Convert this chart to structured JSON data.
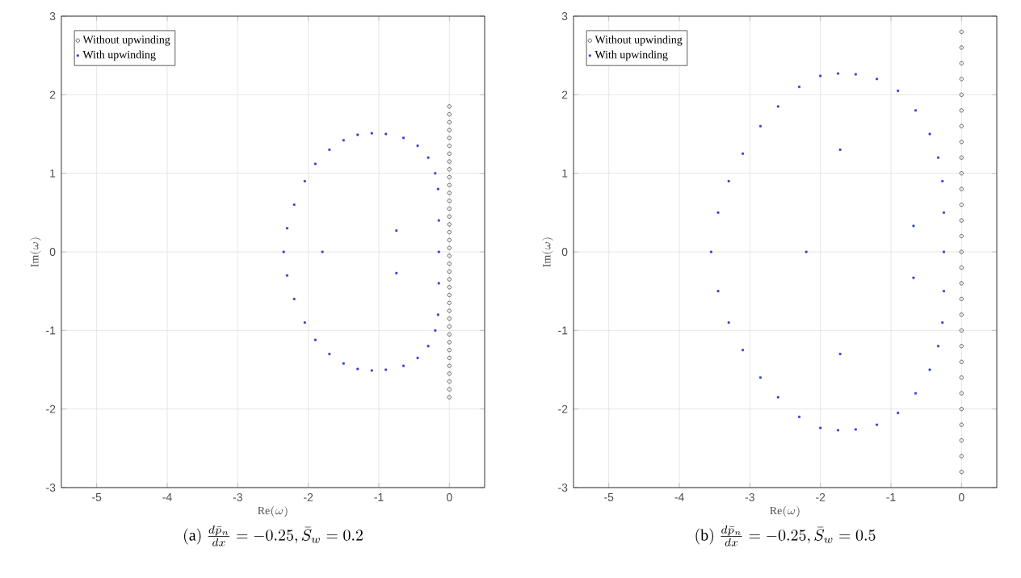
{
  "chart_data": [
    {
      "type": "scatter",
      "title": "\\mathrm{(a)}\\ \\frac{d\\bar{p}_n}{dx} = -0.25, \\bar{S}_w = 0.2",
      "xlabel": "\\mathrm{Re}(\\omega)",
      "ylabel": "\\mathrm{Im}(\\omega)",
      "xlim": [
        -5.5,
        0.5
      ],
      "ylim": [
        -3,
        3
      ],
      "xticks": [
        -5,
        -4,
        -3,
        -2,
        -1,
        0
      ],
      "yticks": [
        -3,
        -2,
        -1,
        0,
        1,
        2,
        3
      ],
      "grid": true,
      "legend": "top left",
      "series": [
        {
          "name": "Without upwinding",
          "color": "#000000",
          "marker": "circle",
          "x": [
            0,
            0,
            0,
            0,
            0,
            0,
            0,
            0,
            0,
            0,
            0,
            0,
            0,
            0,
            0,
            0,
            0,
            0,
            0,
            0,
            0,
            0,
            0,
            0,
            0,
            0,
            0,
            0,
            0,
            0,
            0,
            0,
            0,
            0,
            0,
            0,
            0,
            0
          ],
          "values": [
            -1.85,
            -1.75,
            -1.65,
            -1.55,
            -1.45,
            -1.35,
            -1.25,
            -1.15,
            -1.05,
            -0.95,
            -0.85,
            -0.75,
            -0.65,
            -0.55,
            -0.45,
            -0.35,
            -0.25,
            -0.15,
            -0.05,
            0.05,
            0.15,
            0.25,
            0.35,
            0.45,
            0.55,
            0.65,
            0.75,
            0.85,
            0.95,
            1.05,
            1.15,
            1.25,
            1.35,
            1.45,
            1.55,
            1.65,
            1.75,
            1.85
          ]
        },
        {
          "name": "With upwinding",
          "color": "#3333dd",
          "marker": "square",
          "x": [
            -0.15,
            -0.15,
            -0.16,
            -0.2,
            -0.3,
            -0.45,
            -0.65,
            -0.9,
            -1.1,
            -1.3,
            -1.5,
            -1.7,
            -1.9,
            -2.05,
            -2.2,
            -2.3,
            -2.35,
            -2.3,
            -2.2,
            -2.05,
            -1.9,
            -1.7,
            -1.5,
            -1.3,
            -1.1,
            -0.9,
            -0.65,
            -0.45,
            -0.3,
            -0.2,
            -0.16,
            -0.15,
            -1.8,
            -0.75,
            -0.75
          ],
          "values": [
            0,
            0.4,
            0.8,
            1.0,
            1.2,
            1.35,
            1.45,
            1.5,
            1.51,
            1.49,
            1.42,
            1.3,
            1.12,
            0.9,
            0.6,
            0.3,
            0,
            -0.3,
            -0.6,
            -0.9,
            -1.12,
            -1.3,
            -1.42,
            -1.49,
            -1.51,
            -1.5,
            -1.45,
            -1.35,
            -1.2,
            -1.0,
            -0.8,
            -0.4,
            0,
            0.27,
            -0.27
          ]
        }
      ]
    },
    {
      "type": "scatter",
      "title": "\\mathrm{(b)}\\ \\frac{d\\bar{p}_n}{dx} = -0.25, \\bar{S}_w = 0.5",
      "xlabel": "\\mathrm{Re}(\\omega)",
      "ylabel": "\\mathrm{Im}(\\omega)",
      "xlim": [
        -5.5,
        0.5
      ],
      "ylim": [
        -3,
        3
      ],
      "xticks": [
        -5,
        -4,
        -3,
        -2,
        -1,
        0
      ],
      "yticks": [
        -3,
        -2,
        -1,
        0,
        1,
        2,
        3
      ],
      "grid": true,
      "legend": "top left",
      "series": [
        {
          "name": "Without upwinding",
          "color": "#000000",
          "marker": "circle",
          "x": [
            0,
            0,
            0,
            0,
            0,
            0,
            0,
            0,
            0,
            0,
            0,
            0,
            0,
            0,
            0,
            0,
            0,
            0,
            0,
            0,
            0,
            0,
            0,
            0,
            0,
            0,
            0,
            0,
            0
          ],
          "values": [
            -2.8,
            -2.6,
            -2.4,
            -2.2,
            -2.0,
            -1.8,
            -1.6,
            -1.4,
            -1.2,
            -1.0,
            -0.8,
            -0.6,
            -0.4,
            -0.2,
            0,
            0.2,
            0.4,
            0.6,
            0.8,
            1.0,
            1.2,
            1.4,
            1.6,
            1.8,
            2.0,
            2.2,
            2.4,
            2.6,
            2.8
          ]
        },
        {
          "name": "With upwinding",
          "color": "#3333dd",
          "marker": "square",
          "x": [
            -0.25,
            -0.25,
            -0.27,
            -0.33,
            -0.45,
            -0.65,
            -0.9,
            -1.2,
            -1.5,
            -1.75,
            -2.0,
            -2.3,
            -2.6,
            -2.85,
            -3.1,
            -3.3,
            -3.45,
            -3.55,
            -3.45,
            -3.3,
            -3.1,
            -2.85,
            -2.6,
            -2.3,
            -2.0,
            -1.75,
            -1.5,
            -1.2,
            -0.9,
            -0.65,
            -0.45,
            -0.33,
            -0.27,
            -0.25,
            -2.2,
            -1.72,
            -1.72,
            -0.68,
            -0.68
          ],
          "values": [
            0,
            0.5,
            0.9,
            1.2,
            1.5,
            1.8,
            2.05,
            2.2,
            2.26,
            2.27,
            2.24,
            2.1,
            1.85,
            1.6,
            1.25,
            0.9,
            0.5,
            0,
            -0.5,
            -0.9,
            -1.25,
            -1.6,
            -1.85,
            -2.1,
            -2.24,
            -2.27,
            -2.26,
            -2.2,
            -2.05,
            -1.8,
            -1.5,
            -1.2,
            -0.9,
            -0.5,
            0,
            1.3,
            -1.3,
            0.33,
            -0.33
          ]
        }
      ]
    }
  ]
}
